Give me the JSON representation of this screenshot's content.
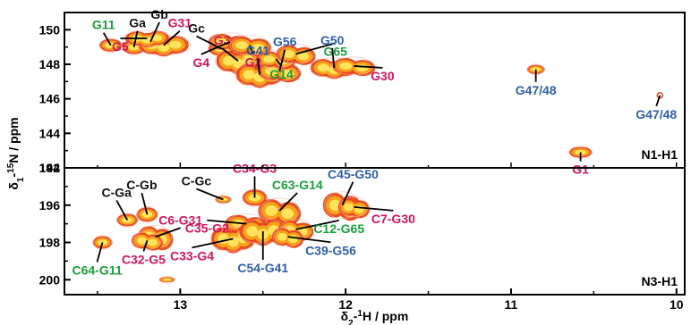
{
  "colors": {
    "red": "#d4145a",
    "green": "#1a9e3c",
    "blue": "#2e5fa8",
    "black": "#111111",
    "peak_outer": "#e8461e",
    "peak_mid": "#f7a21b",
    "peak_inner": "#ffe35a"
  },
  "chart_data": [
    {
      "type": "scatter",
      "panel_label": "N1-H1",
      "xlabel": "δ2-1H / ppm",
      "ylabel": "δ1-15N / ppm",
      "xlim": [
        13.7,
        9.95
      ],
      "ylim": [
        151,
        142
      ],
      "x_ticks": [
        "13",
        "12",
        "11",
        "10"
      ],
      "y_ticks": [
        "142",
        "144",
        "146",
        "148",
        "150"
      ],
      "peaks": [
        {
          "label": "G1",
          "x": 10.58,
          "y": 142.9,
          "color": "red"
        },
        {
          "label": "G47/48",
          "x": 10.85,
          "y": 147.7,
          "color": "blue"
        },
        {
          "label": "G47/48",
          "x": 10.1,
          "y": 146.2,
          "color": "blue"
        },
        {
          "label": "G11",
          "x": 13.42,
          "y": 149.1,
          "color": "green"
        },
        {
          "label": "Ga",
          "x": 13.28,
          "y": 149.0,
          "color": "black"
        },
        {
          "label": "Gb",
          "x": 13.18,
          "y": 149.3,
          "color": "black"
        },
        {
          "label": "G31",
          "x": 13.1,
          "y": 149.1,
          "color": "red"
        },
        {
          "label": "G5",
          "x": 13.2,
          "y": 149.5,
          "color": "red"
        },
        {
          "label": "Gc",
          "x": 12.75,
          "y": 148.9,
          "color": "black"
        },
        {
          "label": "G3",
          "x": 12.65,
          "y": 148.2,
          "color": "red"
        },
        {
          "label": "G4",
          "x": 12.7,
          "y": 149.3,
          "color": "red"
        },
        {
          "label": "G2",
          "x": 12.58,
          "y": 149.1,
          "color": "red"
        },
        {
          "label": "G41",
          "x": 12.52,
          "y": 147.4,
          "color": "blue"
        },
        {
          "label": "G56",
          "x": 12.4,
          "y": 147.6,
          "color": "blue"
        },
        {
          "label": "G14",
          "x": 12.42,
          "y": 148.3,
          "color": "green"
        },
        {
          "label": "G65",
          "x": 12.3,
          "y": 148.6,
          "color": "green"
        },
        {
          "label": "G50",
          "x": 12.07,
          "y": 147.8,
          "color": "blue"
        },
        {
          "label": "G30",
          "x": 11.95,
          "y": 147.9,
          "color": "red"
        }
      ]
    },
    {
      "type": "scatter",
      "panel_label": "N3-H1",
      "xlabel": "δ2-1H / ppm",
      "ylabel": "δ1-15N / ppm",
      "xlim": [
        13.7,
        9.95
      ],
      "ylim": [
        194,
        200.8
      ],
      "x_ticks": [
        "13",
        "12",
        "11",
        "10"
      ],
      "y_ticks": [
        "194",
        "196",
        "198",
        "200"
      ],
      "peaks": [
        {
          "label": "C-Ga",
          "x": 13.32,
          "y": 196.8,
          "color": "black"
        },
        {
          "label": "C-Gb",
          "x": 13.2,
          "y": 196.5,
          "color": "black"
        },
        {
          "label": "C6-G31",
          "x": 13.15,
          "y": 197.7,
          "color": "red"
        },
        {
          "label": "C32-G5",
          "x": 13.2,
          "y": 197.9,
          "color": "red"
        },
        {
          "label": "C64-G11",
          "x": 13.47,
          "y": 198.0,
          "color": "green"
        },
        {
          "label": "",
          "x": 13.08,
          "y": 200.0,
          "color": "red"
        },
        {
          "label": "C-Gc",
          "x": 12.74,
          "y": 195.7,
          "color": "black"
        },
        {
          "label": "C34-G3",
          "x": 12.55,
          "y": 195.6,
          "color": "red"
        },
        {
          "label": "C35-G2",
          "x": 12.6,
          "y": 197.0,
          "color": "red"
        },
        {
          "label": "C33-G4",
          "x": 12.68,
          "y": 197.8,
          "color": "red"
        },
        {
          "label": "C63-G14",
          "x": 12.4,
          "y": 196.3,
          "color": "green"
        },
        {
          "label": "C54-G41",
          "x": 12.5,
          "y": 197.4,
          "color": "blue"
        },
        {
          "label": "C12-G65",
          "x": 12.3,
          "y": 197.3,
          "color": "green"
        },
        {
          "label": "C39-G56",
          "x": 12.35,
          "y": 197.7,
          "color": "blue"
        },
        {
          "label": "C45-G50",
          "x": 12.02,
          "y": 196.0,
          "color": "blue"
        },
        {
          "label": "C7-G30",
          "x": 11.95,
          "y": 196.1,
          "color": "red"
        }
      ]
    }
  ]
}
